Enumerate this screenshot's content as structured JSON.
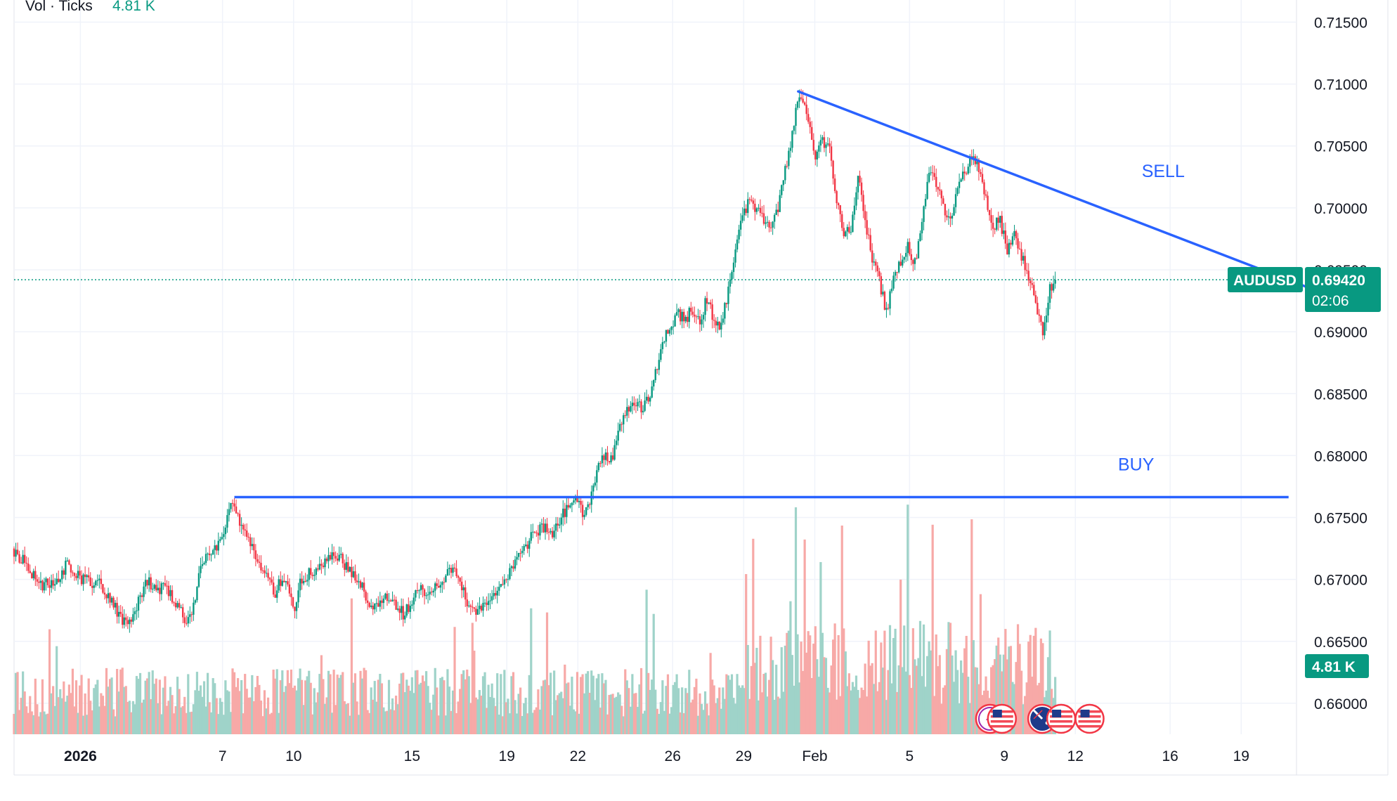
{
  "chart_data": {
    "type": "candlestick",
    "symbol": "AUDUSD",
    "legend": {
      "label": "Vol · Ticks",
      "value": "4.81 K"
    },
    "last_price": {
      "value": "0.69420",
      "countdown": "02:06",
      "numeric": 0.6942
    },
    "volume_tag": "4.81 K",
    "y_axis": {
      "ylim": [
        0.6575,
        0.7165
      ],
      "ticks": [
        "0.71500",
        "0.71000",
        "0.70500",
        "0.70000",
        "0.69500",
        "0.69000",
        "0.68500",
        "0.68000",
        "0.67500",
        "0.67000",
        "0.66500",
        "0.66000"
      ],
      "tick_values": [
        0.715,
        0.71,
        0.705,
        0.7,
        0.695,
        0.69,
        0.685,
        0.68,
        0.675,
        0.67,
        0.665,
        0.66
      ]
    },
    "x_axis": {
      "ticks": [
        {
          "label": "2026",
          "day": 1,
          "bold": true
        },
        {
          "label": "7",
          "day": 7
        },
        {
          "label": "10",
          "day": 10
        },
        {
          "label": "15",
          "day": 15
        },
        {
          "label": "19",
          "day": 19
        },
        {
          "label": "22",
          "day": 22
        },
        {
          "label": "26",
          "day": 26
        },
        {
          "label": "29",
          "day": 29
        },
        {
          "label": "Feb",
          "day": 32
        },
        {
          "label": "5",
          "day": 36
        },
        {
          "label": "9",
          "day": 40
        },
        {
          "label": "12",
          "day": 43
        },
        {
          "label": "16",
          "day": 47
        },
        {
          "label": "19",
          "day": 50
        }
      ],
      "day_range": [
        -1.8,
        51
      ]
    },
    "price_path": [
      [
        -1.8,
        0.6725
      ],
      [
        -1.2,
        0.6712
      ],
      [
        -0.6,
        0.6695
      ],
      [
        0,
        0.6698
      ],
      [
        0.5,
        0.6712
      ],
      [
        1,
        0.6702
      ],
      [
        1.5,
        0.6698
      ],
      [
        2,
        0.6695
      ],
      [
        2.4,
        0.6682
      ],
      [
        2.8,
        0.6668
      ],
      [
        3.1,
        0.666
      ],
      [
        3.5,
        0.6682
      ],
      [
        3.9,
        0.67
      ],
      [
        4.3,
        0.669
      ],
      [
        4.7,
        0.6695
      ],
      [
        5.1,
        0.668
      ],
      [
        5.5,
        0.6668
      ],
      [
        5.8,
        0.6672
      ],
      [
        6.1,
        0.6708
      ],
      [
        6.5,
        0.6722
      ],
      [
        6.9,
        0.6728
      ],
      [
        7.2,
        0.6745
      ],
      [
        7.5,
        0.6762
      ],
      [
        7.9,
        0.6738
      ],
      [
        8.3,
        0.6728
      ],
      [
        8.7,
        0.6712
      ],
      [
        9,
        0.6698
      ],
      [
        9.3,
        0.669
      ],
      [
        9.6,
        0.6702
      ],
      [
        9.9,
        0.6688
      ],
      [
        10.1,
        0.6675
      ],
      [
        10.4,
        0.67
      ],
      [
        10.8,
        0.6706
      ],
      [
        11.2,
        0.6712
      ],
      [
        11.6,
        0.6716
      ],
      [
        12,
        0.672
      ],
      [
        12.4,
        0.6706
      ],
      [
        12.8,
        0.67
      ],
      [
        13.1,
        0.6688
      ],
      [
        13.5,
        0.6676
      ],
      [
        13.9,
        0.6688
      ],
      [
        14.3,
        0.6682
      ],
      [
        14.7,
        0.6672
      ],
      [
        15,
        0.668
      ],
      [
        15.4,
        0.6695
      ],
      [
        15.8,
        0.6688
      ],
      [
        16.2,
        0.6698
      ],
      [
        16.6,
        0.6706
      ],
      [
        17,
        0.6704
      ],
      [
        17.4,
        0.668
      ],
      [
        17.8,
        0.667
      ],
      [
        18.2,
        0.6682
      ],
      [
        18.6,
        0.669
      ],
      [
        19,
        0.67
      ],
      [
        19.4,
        0.6712
      ],
      [
        19.8,
        0.6722
      ],
      [
        20.2,
        0.6738
      ],
      [
        20.6,
        0.6742
      ],
      [
        21,
        0.6736
      ],
      [
        21.4,
        0.6752
      ],
      [
        21.8,
        0.676
      ],
      [
        22,
        0.677
      ],
      [
        22.3,
        0.6752
      ],
      [
        22.6,
        0.6762
      ],
      [
        22.9,
        0.6792
      ],
      [
        23.2,
        0.6802
      ],
      [
        23.5,
        0.6798
      ],
      [
        23.8,
        0.682
      ],
      [
        24.1,
        0.6835
      ],
      [
        24.4,
        0.6842
      ],
      [
        24.8,
        0.6838
      ],
      [
        25.1,
        0.685
      ],
      [
        25.4,
        0.6872
      ],
      [
        25.7,
        0.6895
      ],
      [
        26,
        0.6905
      ],
      [
        26.3,
        0.6915
      ],
      [
        26.6,
        0.691
      ],
      [
        26.9,
        0.6918
      ],
      [
        27.2,
        0.6908
      ],
      [
        27.5,
        0.6925
      ],
      [
        27.8,
        0.6912
      ],
      [
        28.1,
        0.6905
      ],
      [
        28.4,
        0.693
      ],
      [
        28.7,
        0.696
      ],
      [
        29,
        0.699
      ],
      [
        29.3,
        0.7005
      ],
      [
        29.6,
        0.6998
      ],
      [
        29.9,
        0.6992
      ],
      [
        30.2,
        0.6985
      ],
      [
        30.5,
        0.6998
      ],
      [
        30.8,
        0.703
      ],
      [
        31.1,
        0.7055
      ],
      [
        31.3,
        0.708
      ],
      [
        31.5,
        0.7092
      ],
      [
        31.8,
        0.707
      ],
      [
        32.1,
        0.704
      ],
      [
        32.4,
        0.7055
      ],
      [
        32.7,
        0.7045
      ],
      [
        33,
        0.7005
      ],
      [
        33.3,
        0.6975
      ],
      [
        33.6,
        0.6985
      ],
      [
        33.9,
        0.7025
      ],
      [
        34.2,
        0.699
      ],
      [
        34.5,
        0.696
      ],
      [
        34.8,
        0.694
      ],
      [
        35.1,
        0.6915
      ],
      [
        35.4,
        0.6945
      ],
      [
        35.7,
        0.6958
      ],
      [
        36,
        0.697
      ],
      [
        36.3,
        0.6955
      ],
      [
        36.6,
        0.699
      ],
      [
        36.9,
        0.703
      ],
      [
        37.2,
        0.7018
      ],
      [
        37.5,
        0.7
      ],
      [
        37.8,
        0.6992
      ],
      [
        38.1,
        0.7015
      ],
      [
        38.4,
        0.7028
      ],
      [
        38.7,
        0.704
      ],
      [
        39,
        0.703
      ],
      [
        39.3,
        0.7005
      ],
      [
        39.6,
        0.6985
      ],
      [
        39.9,
        0.699
      ],
      [
        40.2,
        0.6965
      ],
      [
        40.5,
        0.6978
      ],
      [
        40.8,
        0.696
      ],
      [
        41.1,
        0.6945
      ],
      [
        41.4,
        0.6925
      ],
      [
        41.7,
        0.6898
      ],
      [
        42,
        0.6935
      ],
      [
        42.2,
        0.6942
      ]
    ],
    "annotations": [
      {
        "type": "trendline",
        "label": "SELL",
        "from": {
          "day": 31.3,
          "price": 0.7094
        },
        "to": {
          "day": 53.6,
          "price": 0.693
        },
        "label_at": {
          "day": 45.8,
          "price": 0.7025
        }
      },
      {
        "type": "horizontal",
        "label": "BUY",
        "price": 0.67665,
        "from_day": 7.5,
        "to_day": 52.0,
        "label_at": {
          "day": 44.8,
          "price": 0.6788
        }
      }
    ],
    "event_icons": [
      {
        "day": 39.4,
        "name": "lightning-event-icon"
      },
      {
        "day": 39.9,
        "name": "us-flag-event-icon"
      },
      {
        "day": 41.6,
        "name": "au-flag-event-icon"
      },
      {
        "day": 42.4,
        "name": "us-flag-event-icon"
      },
      {
        "day": 43.6,
        "name": "us-flag-event-icon"
      }
    ],
    "colors": {
      "up": "#089981",
      "down": "#f23645",
      "vol_up": "#9fd3c9",
      "vol_down": "#f7a9a7",
      "annotation": "#2962ff",
      "grid": "#f0f3fa",
      "text": "#131722",
      "price_line": "#089981"
    }
  }
}
